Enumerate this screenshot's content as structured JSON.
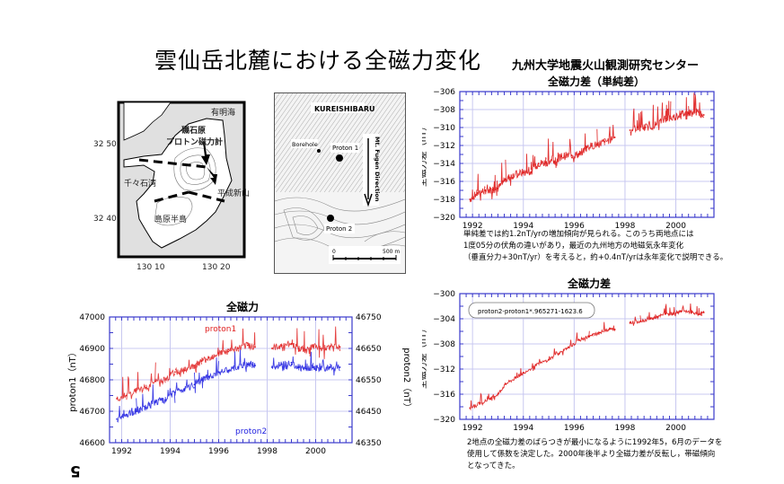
{
  "page": {
    "title": "雲仙岳北麓における全磁力変化",
    "organization": "九州大学地震火山観測研究センター",
    "page_number": "5"
  },
  "map_left": {
    "labels": {
      "sea_northeast": "有明海",
      "station": "磯石原",
      "instrument": "プロトン磁力計",
      "bay_west": "千々石湾",
      "mountain": "平成新山",
      "peninsula": "島原半島",
      "lat_top": "32 50",
      "lat_bottom": "32 40",
      "lon_left": "130 10",
      "lon_right": "130 20"
    }
  },
  "map_right": {
    "labels": {
      "area": "KUREISHIBARU",
      "borehole": "Borehole",
      "proton1": "Proton 1",
      "proton2": "Proton 2",
      "direction": "Mt. Fugen Direction",
      "scale_start": "0",
      "scale_end": "500 m"
    }
  },
  "chart_data": [
    {
      "type": "line",
      "title": "全磁力差（単純差）",
      "xlabel": "",
      "ylabel": "全磁力差（nT）",
      "xlim": [
        1991.5,
        2001.5
      ],
      "ylim": [
        -320,
        -306
      ],
      "x_ticks": [
        "1992",
        "1994",
        "1996",
        "1998",
        "2000"
      ],
      "y_ticks": [
        "-306",
        "-308",
        "-310",
        "-312",
        "-314",
        "-316",
        "-318",
        "-320"
      ],
      "grid": true,
      "color": "#dd1111",
      "series": [
        {
          "name": "単純差",
          "x": [
            1991.9,
            1992.2,
            1992.5,
            1992.8,
            1993.0,
            1993.3,
            1993.6,
            1994.0,
            1994.3,
            1994.6,
            1994.9,
            1995.2,
            1995.5,
            1995.9,
            1996.2,
            1996.5,
            1996.9,
            1997.2,
            1997.6,
            1998.2,
            1998.5,
            1998.8,
            1999.2,
            1999.6,
            1999.8,
            2000.2,
            2000.5,
            2000.8,
            2001.1
          ],
          "y": [
            -318.0,
            -317.3,
            -317.0,
            -316.9,
            -316.8,
            -315.8,
            -315.3,
            -315.0,
            -315.0,
            -314.0,
            -313.9,
            -313.8,
            -313.2,
            -313.1,
            -313.0,
            -312.2,
            -311.9,
            -311.6,
            -311.1,
            -310.3,
            -310.0,
            -310.0,
            -309.7,
            -309.0,
            -309.0,
            -308.5,
            -308.4,
            -308.3,
            -308.6
          ]
        }
      ],
      "note": [
        "単純差では約1.2nT/yrの増加傾向が見られる。このうち両地点には",
        "1度05分の伏角の違いがあり，最近の九州地方の地磁気永年変化",
        "（垂直分力+30nT/yr）を考えると，約+0.4nT/yrは永年変化で説明できる。"
      ]
    },
    {
      "type": "line",
      "title": "全磁力差",
      "xlabel": "",
      "ylabel": "全磁力差（nT）",
      "xlim": [
        1991.5,
        2001.5
      ],
      "ylim": [
        -320,
        -300
      ],
      "x_ticks": [
        "1992",
        "1994",
        "1996",
        "1998",
        "2000"
      ],
      "y_ticks": [
        "-300",
        "-304",
        "-308",
        "-312",
        "-316",
        "-320"
      ],
      "grid": true,
      "color": "#dd1111",
      "legend": "proton2-proton1*.965271-1623.6",
      "series": [
        {
          "name": "全磁力差",
          "x": [
            1991.9,
            1992.3,
            1992.7,
            1993.0,
            1993.3,
            1993.7,
            1994.0,
            1994.5,
            1995.0,
            1995.4,
            1995.8,
            1996.2,
            1996.6,
            1997.0,
            1997.4,
            1997.6,
            1998.2,
            1998.6,
            1999.0,
            1999.3,
            1999.6,
            1999.9,
            2000.2,
            2000.6,
            2000.9,
            2001.1
          ],
          "y": [
            -318.2,
            -317.4,
            -316.8,
            -316.0,
            -314.4,
            -313.4,
            -312.6,
            -311.4,
            -310.5,
            -309.5,
            -308.6,
            -307.4,
            -306.8,
            -306.2,
            -305.6,
            -305.7,
            -304.6,
            -304.4,
            -304.0,
            -303.7,
            -303.2,
            -303.2,
            -302.8,
            -303.0,
            -303.3,
            -303.0
          ]
        }
      ],
      "note": [
        "2地点の全磁力差のばらつきが最小になるように1992年5，6月のデータを",
        "使用して係数を決定した。2000年後半より全磁力差が反転し，帯磁傾向",
        "となってきた。"
      ]
    },
    {
      "type": "line",
      "title": "全磁力",
      "xlabel": "",
      "ylabel": "proton1（nT）",
      "ylabel_right": "proton2（nT）",
      "xlim": [
        1991.5,
        2001.5
      ],
      "ylim": [
        46600,
        47000
      ],
      "ylim_right": [
        46350,
        46750
      ],
      "x_ticks": [
        "1992",
        "1994",
        "1996",
        "1998",
        "2000"
      ],
      "y_ticks": [
        "47000",
        "46900",
        "46800",
        "46700",
        "46600"
      ],
      "y_ticks_right": [
        "46750",
        "46650",
        "46550",
        "46450",
        "46350"
      ],
      "grid": true,
      "series": [
        {
          "name": "proton1",
          "axis": "left",
          "color": "#e02020",
          "x": [
            1991.8,
            1992.2,
            1992.6,
            1993.0,
            1993.4,
            1993.8,
            1994.2,
            1994.6,
            1995.0,
            1995.3,
            1995.6,
            1996.0,
            1996.4,
            1996.8,
            1997.2,
            1997.5,
            1998.2,
            1998.6,
            1999.0,
            1999.3,
            1999.6,
            1999.9,
            2000.2,
            2000.6,
            2001.0
          ],
          "y": [
            46740,
            46750,
            46765,
            46775,
            46795,
            46800,
            46825,
            46830,
            46845,
            46860,
            46870,
            46885,
            46890,
            46900,
            46910,
            46905,
            46900,
            46910,
            46915,
            46900,
            46895,
            46905,
            46900,
            46905,
            46905
          ]
        },
        {
          "name": "proton2",
          "axis": "right",
          "color": "#2020e0",
          "x": [
            1991.8,
            1992.2,
            1992.6,
            1993.0,
            1993.4,
            1993.8,
            1994.2,
            1994.6,
            1995.0,
            1995.3,
            1995.6,
            1996.0,
            1996.4,
            1996.8,
            1997.2,
            1997.5,
            1998.2,
            1998.6,
            1999.0,
            1999.3,
            1999.6,
            1999.9,
            2000.2,
            2000.6,
            2001.0
          ],
          "y": [
            46425,
            46440,
            46450,
            46460,
            46480,
            46485,
            46510,
            46520,
            46535,
            46550,
            46560,
            46575,
            46580,
            46590,
            46600,
            46595,
            46590,
            46600,
            46605,
            46590,
            46585,
            46590,
            46585,
            46590,
            46590
          ]
        }
      ]
    }
  ]
}
